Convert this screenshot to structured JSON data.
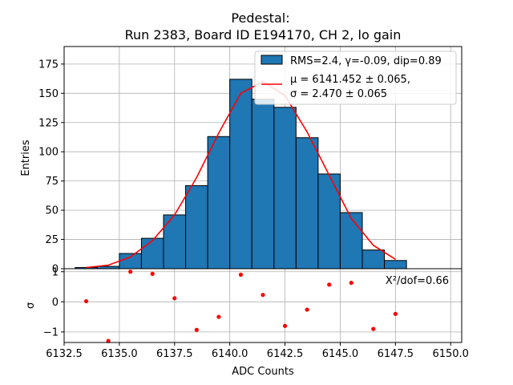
{
  "chart_data": [
    {
      "type": "bar",
      "title_line1": "Pedestal:",
      "title_line2": "Run 2383, Board ID E194170, CH 2, lo gain",
      "xlabel": "",
      "ylabel": "Entries",
      "xlim": [
        6132.5,
        6150.5
      ],
      "ylim": [
        0,
        190
      ],
      "grid": true,
      "legend_position": "top-right",
      "bar_color": "#1f77b4",
      "fit_color": "#ff0000",
      "xticks": [
        6132.5,
        6135.0,
        6137.5,
        6140.0,
        6142.5,
        6145.0,
        6147.5,
        6150.0
      ],
      "yticks": [
        0,
        25,
        50,
        75,
        100,
        125,
        150,
        175
      ],
      "yticklabels": [
        "0",
        "25",
        "50",
        "75",
        "100",
        "125",
        "150",
        "175"
      ],
      "histogram": {
        "bin_edges": [
          6133.0,
          6134.0,
          6135.0,
          6136.0,
          6137.0,
          6138.0,
          6139.0,
          6140.0,
          6141.0,
          6142.0,
          6143.0,
          6144.0,
          6145.0,
          6146.0,
          6147.0,
          6148.0
        ],
        "counts": [
          1,
          2,
          13,
          26,
          46,
          71,
          113,
          162,
          145,
          138,
          112,
          81,
          48,
          16,
          7
        ]
      },
      "fit_curve": {
        "x": [
          6133.5,
          6134.5,
          6135.5,
          6136.5,
          6137.5,
          6138.5,
          6139.5,
          6140.5,
          6141.5,
          6142.5,
          6143.5,
          6144.5,
          6145.5,
          6146.5,
          6147.5
        ],
        "y": [
          1,
          3,
          10,
          24,
          46,
          78,
          116,
          150,
          160,
          148,
          117,
          80,
          43,
          20,
          8
        ]
      },
      "legend": {
        "hist_label": "RMS=2.4, γ=-0.09, dip=0.89",
        "fit_line1": "μ = 6141.452 ± 0.065,",
        "fit_line2": "σ = 2.470 ± 0.065"
      }
    },
    {
      "type": "scatter",
      "xlabel": "ADC Counts",
      "ylabel": "σ",
      "xlim": [
        6132.5,
        6150.5
      ],
      "ylim": [
        -1.35,
        1.1
      ],
      "grid": true,
      "marker_color": "#ff0000",
      "xticks": [
        6132.5,
        6135.0,
        6137.5,
        6140.0,
        6142.5,
        6145.0,
        6147.5,
        6150.0
      ],
      "xticklabels": [
        "6132.5",
        "6135.0",
        "6137.5",
        "6140.0",
        "6142.5",
        "6145.0",
        "6147.5",
        "6150.0"
      ],
      "yticks": [
        -1,
        0,
        1
      ],
      "yticklabels": [
        "−1",
        "0",
        "1"
      ],
      "annotation": "X²/dof=0.66",
      "points": {
        "x": [
          6133.5,
          6134.5,
          6135.5,
          6136.5,
          6137.5,
          6138.5,
          6139.5,
          6140.5,
          6141.5,
          6142.5,
          6143.5,
          6144.5,
          6145.5,
          6146.5,
          6147.5
        ],
        "y": [
          0.02,
          -1.3,
          1.0,
          0.93,
          0.12,
          -0.93,
          -0.5,
          0.9,
          0.23,
          -0.8,
          -0.26,
          0.57,
          0.63,
          -0.9,
          -0.4
        ]
      }
    }
  ]
}
